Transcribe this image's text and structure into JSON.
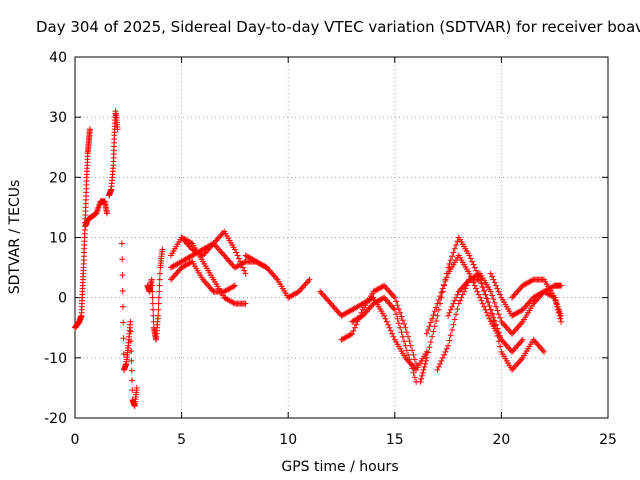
{
  "chart_data": {
    "type": "scatter",
    "title": "Day 304 of 2025, Sidereal Day-to-day VTEC variation (SDTVAR) for receiver boav",
    "xlabel": "GPS time / hours",
    "ylabel": "SDTVAR / TECUs",
    "xlim": [
      0,
      25
    ],
    "ylim": [
      -20,
      40
    ],
    "xticks": [
      0,
      5,
      10,
      15,
      20,
      25
    ],
    "yticks": [
      -20,
      -10,
      0,
      10,
      20,
      30,
      40
    ],
    "xtick_labels": [
      "0",
      "5",
      "10",
      "15",
      "20",
      "25"
    ],
    "ytick_labels": [
      "-20",
      "-10",
      "0",
      "10",
      "20",
      "30",
      "40"
    ],
    "grid": true,
    "marker": "+",
    "color": "#ff0000",
    "series": [
      {
        "name": "s1",
        "x": [
          0.0,
          0.1,
          0.2,
          0.3,
          0.35,
          0.4,
          0.45,
          0.5,
          0.55,
          0.6,
          0.65,
          0.7
        ],
        "y": [
          -5,
          -4.5,
          -4,
          -3,
          1,
          5,
          10,
          15,
          20,
          24,
          26,
          28
        ]
      },
      {
        "name": "s2",
        "x": [
          0.5,
          0.6,
          0.8,
          1.0,
          1.2,
          1.4,
          1.5
        ],
        "y": [
          12,
          13,
          13.5,
          14,
          16,
          16,
          14
        ]
      },
      {
        "name": "s3",
        "x": [
          1.6,
          1.7,
          1.8,
          1.85,
          1.9,
          2.0
        ],
        "y": [
          17,
          18,
          22,
          27,
          31,
          28
        ]
      },
      {
        "name": "s4",
        "x": [
          2.2,
          2.3,
          2.4,
          2.5,
          2.6,
          2.7,
          2.8,
          2.9
        ],
        "y": [
          9,
          -12,
          -11,
          -8,
          -4,
          -17,
          -18,
          -15
        ]
      },
      {
        "name": "s5",
        "x": [
          3.4,
          3.5,
          3.6,
          3.7,
          3.8,
          3.9,
          4.0,
          4.1
        ],
        "y": [
          2,
          1,
          3,
          -5,
          -7,
          -3,
          5,
          8
        ]
      },
      {
        "name": "s6",
        "x": [
          4.5,
          5,
          5.5,
          6,
          6.5,
          7,
          7.5,
          8
        ],
        "y": [
          7,
          10,
          8,
          7,
          9,
          11,
          8,
          4
        ]
      },
      {
        "name": "s7",
        "x": [
          4.5,
          5,
          5.5,
          6,
          6.5,
          7,
          7.5,
          8,
          8.5,
          9
        ],
        "y": [
          5,
          6,
          7,
          8,
          9,
          7,
          5,
          6,
          6,
          5
        ]
      },
      {
        "name": "s8",
        "x": [
          4.5,
          5,
          5.5,
          6,
          6.5,
          7,
          7.5
        ],
        "y": [
          3,
          5,
          6,
          3,
          1,
          1,
          2
        ]
      },
      {
        "name": "s9",
        "x": [
          5,
          5.5,
          6,
          6.5,
          7,
          7.5,
          8
        ],
        "y": [
          10,
          9,
          6,
          3,
          0,
          -1,
          -1
        ]
      },
      {
        "name": "s10",
        "x": [
          8,
          8.5,
          9,
          9.5,
          10,
          10.5,
          11
        ],
        "y": [
          7,
          6,
          5,
          3,
          0,
          1,
          3
        ]
      },
      {
        "name": "s11",
        "x": [
          11.5,
          12,
          12.5,
          13,
          13.5,
          14,
          14.5,
          15,
          15.5,
          16,
          16.5
        ],
        "y": [
          1,
          -1,
          -3,
          -2,
          -1,
          0,
          -3,
          -7,
          -10,
          -12,
          -9
        ]
      },
      {
        "name": "s12",
        "x": [
          12.5,
          13,
          13.5,
          14,
          14.5,
          15,
          15.5,
          16
        ],
        "y": [
          -7,
          -6,
          -2,
          1,
          2,
          0,
          -5,
          -11
        ]
      },
      {
        "name": "s13",
        "x": [
          13,
          13.5,
          14,
          14.5,
          15,
          15.5,
          16
        ],
        "y": [
          -4,
          -3,
          -1,
          0,
          -2,
          -8,
          -14
        ]
      },
      {
        "name": "s14",
        "x": [
          16.2,
          16.5,
          17,
          17.5,
          18,
          18.5,
          19,
          19.5,
          20,
          20.5,
          21
        ],
        "y": [
          -14,
          -10,
          -3,
          5,
          10,
          7,
          3,
          -2,
          -7,
          -9,
          -7
        ]
      },
      {
        "name": "s15",
        "x": [
          16.5,
          17,
          17.5,
          18,
          18.5,
          19,
          19.5,
          20
        ],
        "y": [
          -6,
          -1,
          4,
          7,
          4,
          0,
          -4,
          -7
        ]
      },
      {
        "name": "s16",
        "x": [
          17,
          17.5,
          18,
          18.5,
          19,
          19.5,
          20,
          20.5,
          21,
          21.5,
          22
        ],
        "y": [
          -12,
          -8,
          -1,
          3,
          3,
          -2,
          -9,
          -12,
          -10,
          -7,
          -9
        ]
      },
      {
        "name": "s17",
        "x": [
          17.5,
          18,
          18.5,
          19,
          19.5,
          20,
          20.5,
          21,
          21.5,
          22,
          22.5,
          22.8
        ],
        "y": [
          -3,
          1,
          3,
          4,
          1,
          -4,
          -6,
          -4,
          -1,
          1,
          2,
          2
        ]
      },
      {
        "name": "s18",
        "x": [
          19.5,
          20,
          20.5,
          21,
          21.5,
          22,
          22.5,
          22.8
        ],
        "y": [
          4,
          0,
          -3,
          -2,
          0,
          1,
          0,
          -4
        ]
      },
      {
        "name": "s19",
        "x": [
          20.5,
          21,
          21.5,
          22,
          22.5,
          22.8
        ],
        "y": [
          0,
          2,
          3,
          3,
          0,
          -3
        ]
      }
    ]
  }
}
